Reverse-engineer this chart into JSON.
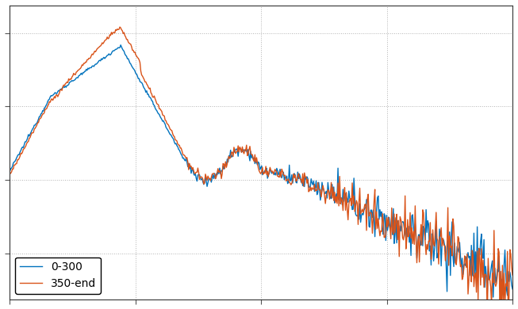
{
  "title": "",
  "xlabel": "",
  "ylabel": "",
  "line1_label": "0-300",
  "line2_label": "350-end",
  "line1_color": "#0072BD",
  "line2_color": "#D95319",
  "background_color": "#ffffff",
  "grid_color": "#aaaaaa",
  "figsize": [
    6.53,
    3.9
  ],
  "dpi": 100,
  "legend_loc": "lower left",
  "legend_fontsize": 10,
  "ylim": [
    -1.05,
    0.55
  ],
  "xlim": [
    0,
    1
  ]
}
